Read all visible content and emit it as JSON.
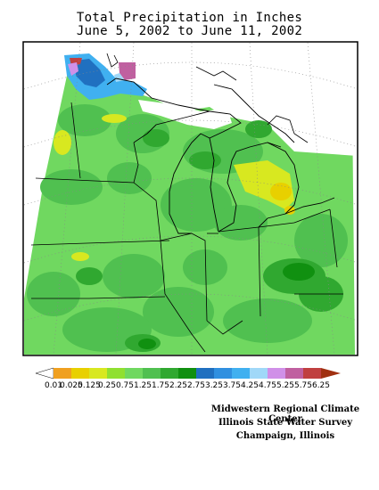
{
  "title": "Total Precipitation in Inches",
  "subtitle": "June 5, 2002 to June 11, 2002",
  "legend": {
    "labels": [
      "0.01",
      "0.025",
      "0.125",
      "0.25",
      "0.75",
      "1.25",
      "1.75",
      "2.25",
      "2.75",
      "3.25",
      "3.75",
      "4.25",
      "4.75",
      "5.25",
      "5.75",
      "6.25"
    ],
    "colors": [
      "#f0a020",
      "#e8d000",
      "#d8e820",
      "#90e030",
      "#70d860",
      "#50c050",
      "#30a830",
      "#109010",
      "#2070c0",
      "#3090e0",
      "#40b0f0",
      "#a0d8f8",
      "#d090e8",
      "#c060a0",
      "#c04040",
      "#a03010"
    ]
  },
  "credits": {
    "line1": "Midwestern Regional Climate Center",
    "line2": "Illinois State Water Survey",
    "line3": "Champaign, Illinois"
  }
}
